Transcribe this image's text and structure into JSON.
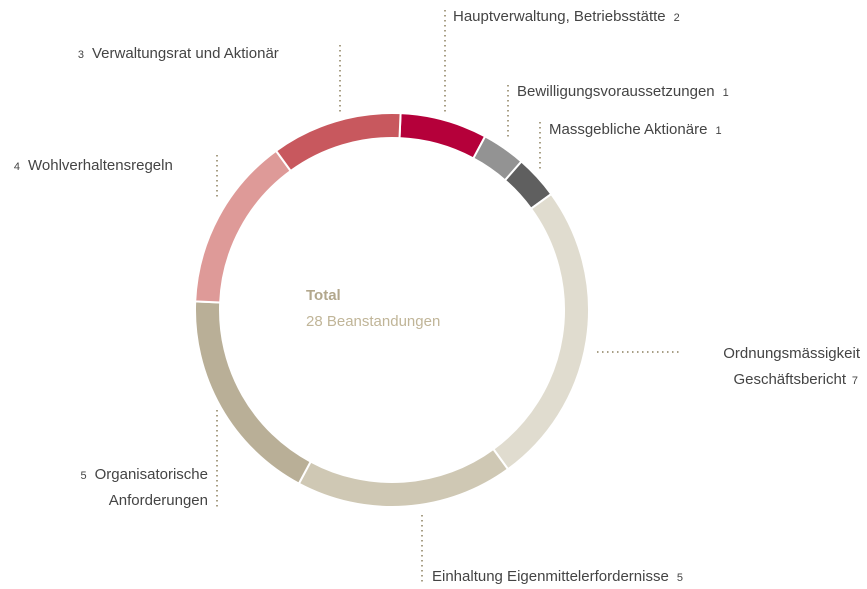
{
  "chart_data": {
    "type": "donut",
    "center_title": "Total",
    "center_subtitle": "28 Beanstandungen",
    "categories": [
      "Hauptverwaltung, Betriebsstätte",
      "Bewilligungsvoraussetzungen",
      "Massgebliche Aktionäre",
      "Ordnungsmässigkeit Geschäftsbericht",
      "Einhaltung Eigenmittelerfordernisse",
      "Organisatorische Anforderungen",
      "Wohlverhaltensregeln",
      "Verwaltungsrat und Aktionär"
    ],
    "values": [
      2,
      1,
      1,
      7,
      5,
      5,
      4,
      3
    ],
    "colors": [
      "#b5003a",
      "#939393",
      "#5f5f5f",
      "#e0dccf",
      "#cfc8b4",
      "#b9af97",
      "#de9a98",
      "#c8585e"
    ]
  }
}
